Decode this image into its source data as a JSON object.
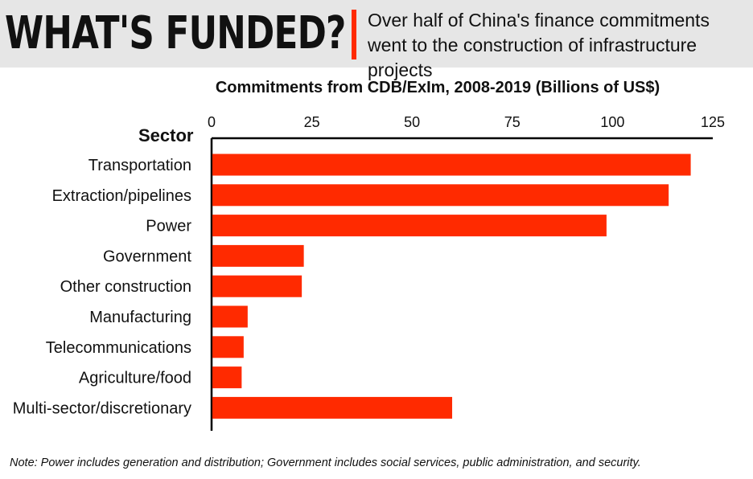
{
  "header": {
    "headline": "WHAT'S FUNDED?",
    "subtitle": "Over half of China's finance commitments went to the construction of infrastructure projects"
  },
  "colors": {
    "bar": "#ff2a00",
    "accent": "#ff2a00",
    "header_bg": "#e6e6e6"
  },
  "chart_data": {
    "type": "bar",
    "orientation": "horizontal",
    "title": "Commitments from CDB/ExIm, 2008-2019 (Billions of US$)",
    "category_axis_label": "Sector",
    "categories": [
      "Transportation",
      "Extraction/pipelines",
      "Power",
      "Government",
      "Other construction",
      "Manufacturing",
      "Telecommunications",
      "Agriculture/food",
      "Multi-sector/discretionary"
    ],
    "values": [
      119.5,
      114,
      98.5,
      23,
      22.5,
      9,
      8,
      7.5,
      60
    ],
    "xlim": [
      0,
      125
    ],
    "xticks": [
      "0",
      "25",
      "50",
      "75",
      "100",
      "125"
    ],
    "axis_position": "top",
    "grid": false,
    "legend": "none"
  },
  "note": "Note: Power includes generation and distribution; Government includes social services, public administration, and security."
}
